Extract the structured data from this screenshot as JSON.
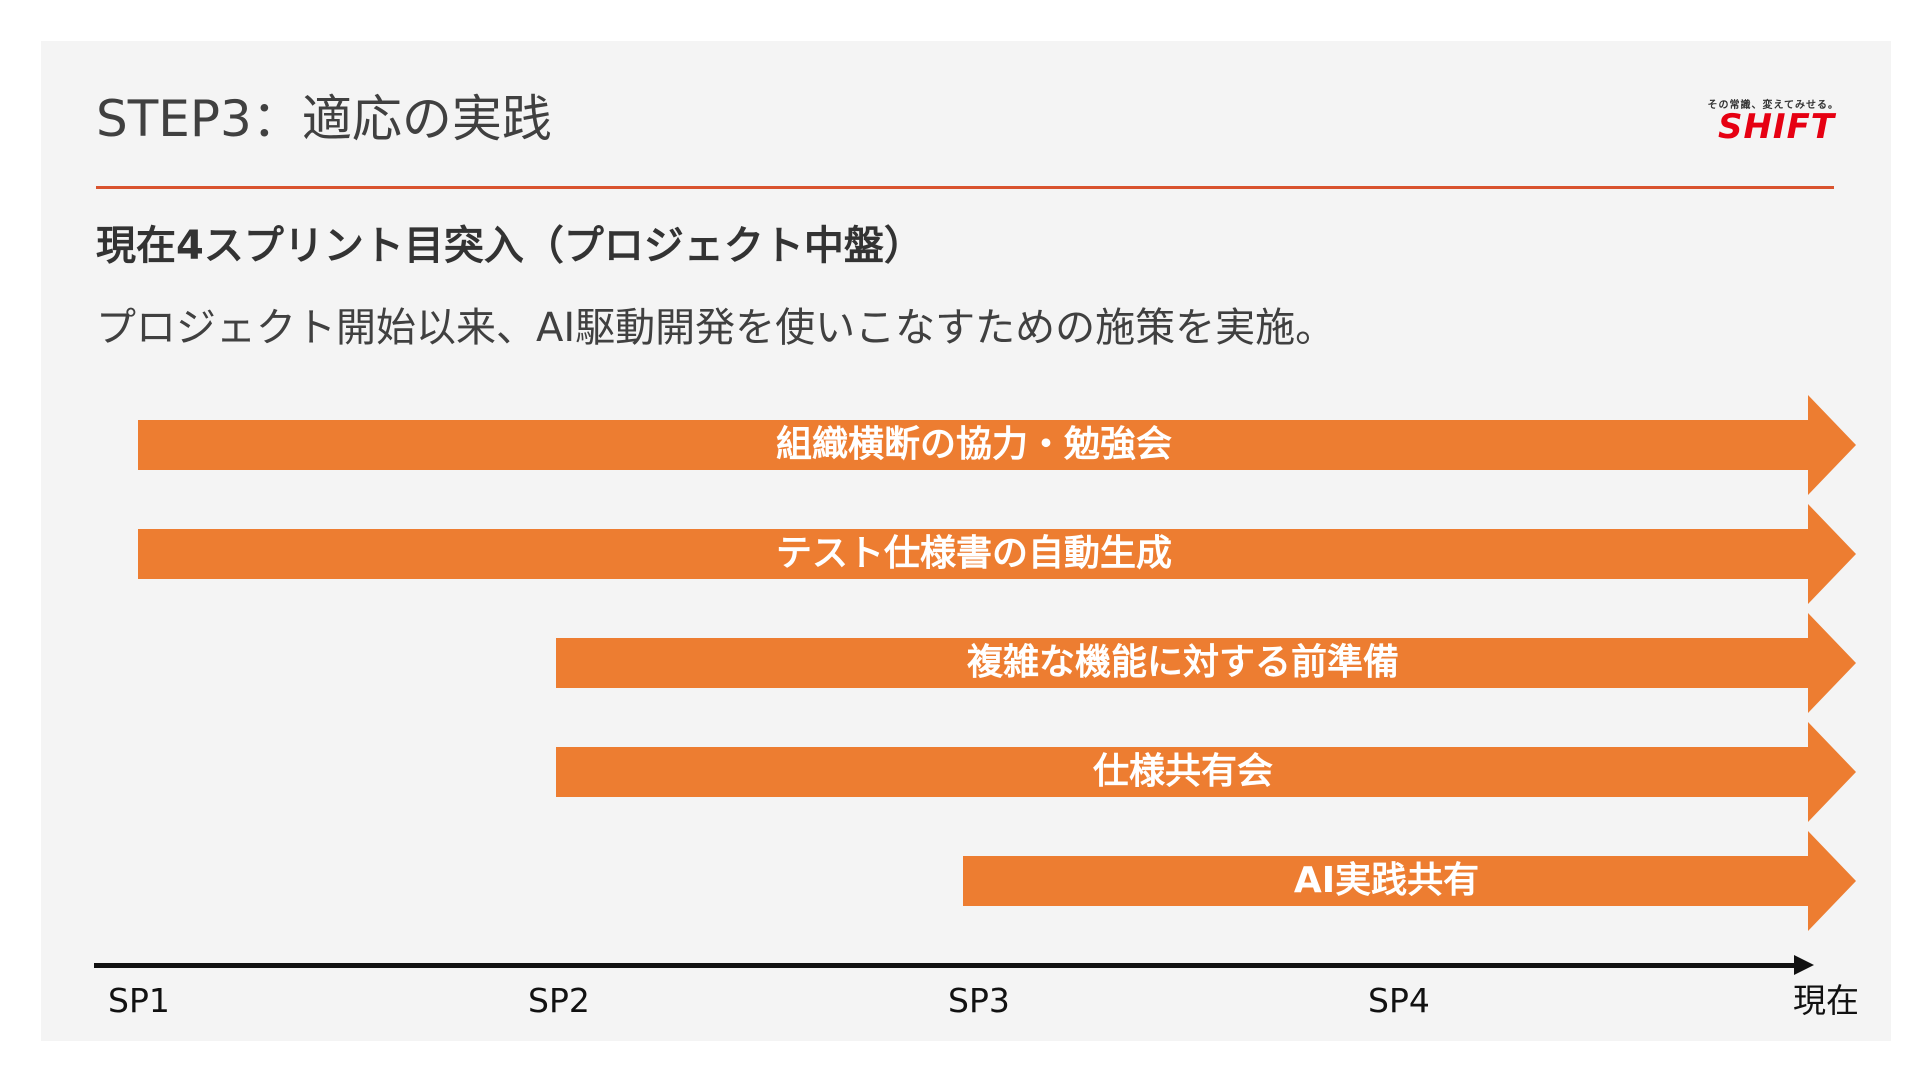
{
  "slide": {
    "title": "STEP3：適応の実践",
    "subheading": "現在4スプリント目突入（プロジェクト中盤）",
    "description": "プロジェクト開始以来、AI駆動開発を使いこなすための施策を実施。"
  },
  "logo": {
    "tagline": "その常識、変えてみせる。",
    "name": "SHIFT",
    "color": "#e60012"
  },
  "colors": {
    "accent_rule": "#d9532e",
    "arrow": "#ed7d31"
  },
  "timeline": {
    "ticks": [
      "SP1",
      "SP2",
      "SP3",
      "SP4",
      "現在"
    ],
    "initiatives": [
      {
        "label": "組織横断の協力・勉強会",
        "start": "SP1",
        "end": "現在"
      },
      {
        "label": "テスト仕様書の自動生成",
        "start": "SP1",
        "end": "現在"
      },
      {
        "label": "複雑な機能に対する前準備",
        "start": "SP2",
        "end": "現在"
      },
      {
        "label": "仕様共有会",
        "start": "SP2",
        "end": "現在"
      },
      {
        "label": "AI実践共有",
        "start": "SP3",
        "end": "現在"
      }
    ]
  }
}
